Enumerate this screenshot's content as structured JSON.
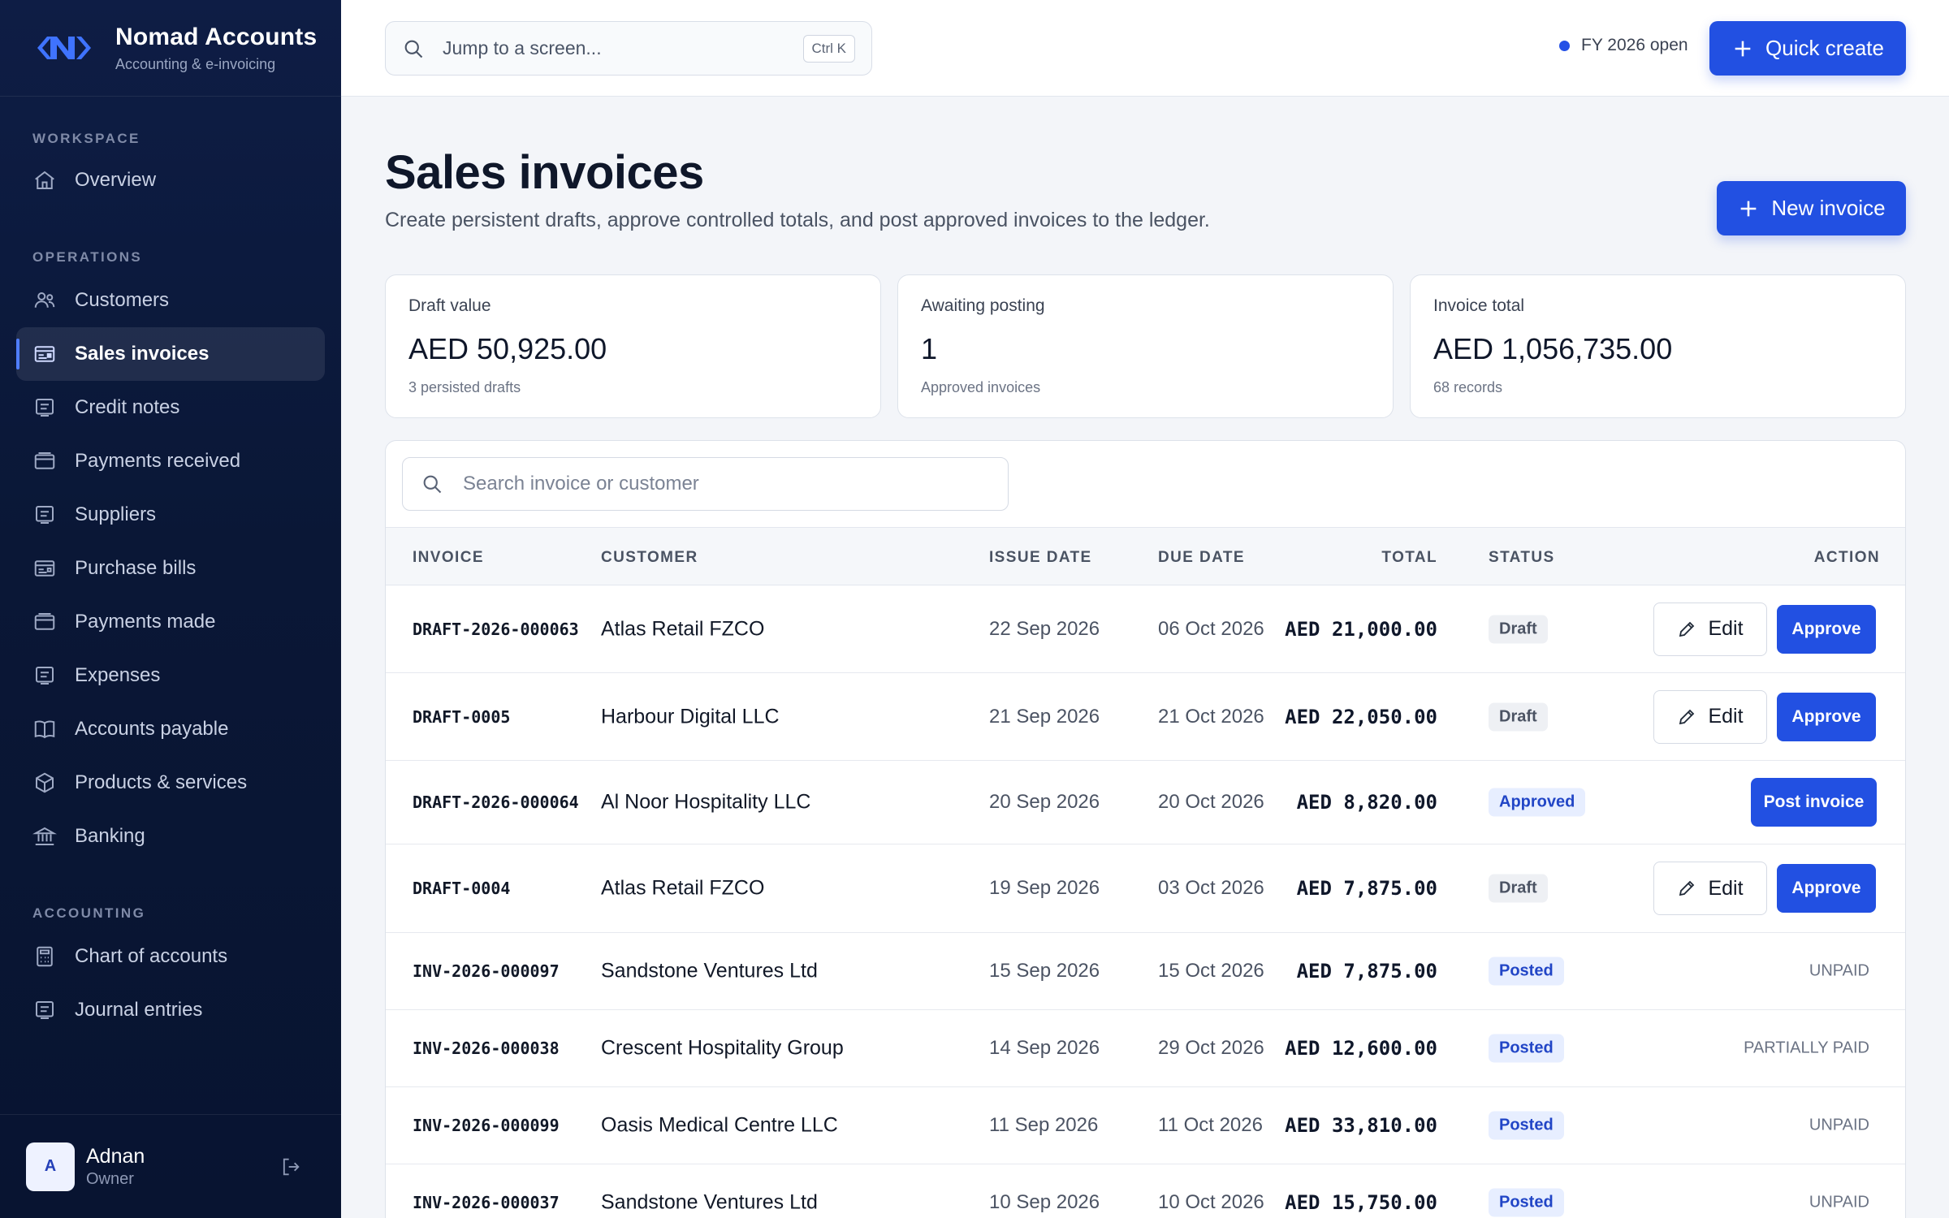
{
  "brand": {
    "name": "Nomad Accounts",
    "tagline": "Accounting & e-invoicing"
  },
  "sidebar": {
    "sections": [
      {
        "title": "WORKSPACE",
        "items": [
          {
            "label": "Overview",
            "icon": "home-icon"
          }
        ]
      },
      {
        "title": "OPERATIONS",
        "items": [
          {
            "label": "Customers",
            "icon": "users-icon"
          },
          {
            "label": "Sales invoices",
            "icon": "invoice-icon",
            "active": true
          },
          {
            "label": "Credit notes",
            "icon": "document-icon"
          },
          {
            "label": "Payments received",
            "icon": "wallet-icon"
          },
          {
            "label": "Suppliers",
            "icon": "document-icon"
          },
          {
            "label": "Purchase bills",
            "icon": "bill-icon"
          },
          {
            "label": "Payments made",
            "icon": "wallet-icon"
          },
          {
            "label": "Expenses",
            "icon": "document-icon"
          },
          {
            "label": "Accounts payable",
            "icon": "book-icon"
          },
          {
            "label": "Products & services",
            "icon": "box-icon"
          },
          {
            "label": "Banking",
            "icon": "bank-icon"
          }
        ]
      },
      {
        "title": "ACCOUNTING",
        "items": [
          {
            "label": "Chart of accounts",
            "icon": "calculator-icon"
          },
          {
            "label": "Journal entries",
            "icon": "document-icon"
          }
        ]
      }
    ],
    "user": {
      "initial": "A",
      "name": "Adnan",
      "role": "Owner"
    }
  },
  "topbar": {
    "jump_placeholder": "Jump to a screen...",
    "shortcut": "Ctrl K",
    "fiscal_status": "FY 2026 open",
    "quick_create": "Quick create"
  },
  "page": {
    "title": "Sales invoices",
    "subtitle": "Create persistent drafts, approve controlled totals, and post approved invoices to the ledger.",
    "new_invoice": "New invoice"
  },
  "stats": [
    {
      "label": "Draft value",
      "value": "AED 50,925.00",
      "note": "3 persisted drafts"
    },
    {
      "label": "Awaiting posting",
      "value": "1",
      "note": "Approved invoices"
    },
    {
      "label": "Invoice total",
      "value": "AED 1,056,735.00",
      "note": "68 records"
    }
  ],
  "table": {
    "search_placeholder": "Search invoice or customer",
    "columns": {
      "invoice": "INVOICE",
      "customer": "CUSTOMER",
      "issue": "ISSUE DATE",
      "due": "DUE DATE",
      "total": "TOTAL",
      "status": "STATUS",
      "action": "ACTION"
    },
    "edit_label": "Edit",
    "approve_label": "Approve",
    "post_label": "Post invoice",
    "rows": [
      {
        "invoice": "DRAFT-2026-000063",
        "customer": "Atlas Retail FZCO",
        "issue": "22 Sep 2026",
        "due": "06 Oct 2026",
        "total": "AED 21,000.00",
        "status": "Draft"
      },
      {
        "invoice": "DRAFT-0005",
        "customer": "Harbour Digital LLC",
        "issue": "21 Sep 2026",
        "due": "21 Oct 2026",
        "total": "AED 22,050.00",
        "status": "Draft"
      },
      {
        "invoice": "DRAFT-2026-000064",
        "customer": "Al Noor Hospitality LLC",
        "issue": "20 Sep 2026",
        "due": "20 Oct 2026",
        "total": "AED 8,820.00",
        "status": "Approved"
      },
      {
        "invoice": "DRAFT-0004",
        "customer": "Atlas Retail FZCO",
        "issue": "19 Sep 2026",
        "due": "03 Oct 2026",
        "total": "AED 7,875.00",
        "status": "Draft"
      },
      {
        "invoice": "INV-2026-000097",
        "customer": "Sandstone Ventures Ltd",
        "issue": "15 Sep 2026",
        "due": "15 Oct 2026",
        "total": "AED 7,875.00",
        "status": "Posted",
        "payment": "UNPAID"
      },
      {
        "invoice": "INV-2026-000038",
        "customer": "Crescent Hospitality Group",
        "issue": "14 Sep 2026",
        "due": "29 Oct 2026",
        "total": "AED 12,600.00",
        "status": "Posted",
        "payment": "PARTIALLY PAID"
      },
      {
        "invoice": "INV-2026-000099",
        "customer": "Oasis Medical Centre LLC",
        "issue": "11 Sep 2026",
        "due": "11 Oct 2026",
        "total": "AED 33,810.00",
        "status": "Posted",
        "payment": "UNPAID"
      },
      {
        "invoice": "INV-2026-000037",
        "customer": "Sandstone Ventures Ltd",
        "issue": "10 Sep 2026",
        "due": "10 Oct 2026",
        "total": "AED 15,750.00",
        "status": "Posted",
        "payment": "UNPAID"
      }
    ]
  },
  "colors": {
    "accent": "#2250e2",
    "sidebar": "#0a1736",
    "page_bg": "#f3f5f9"
  }
}
